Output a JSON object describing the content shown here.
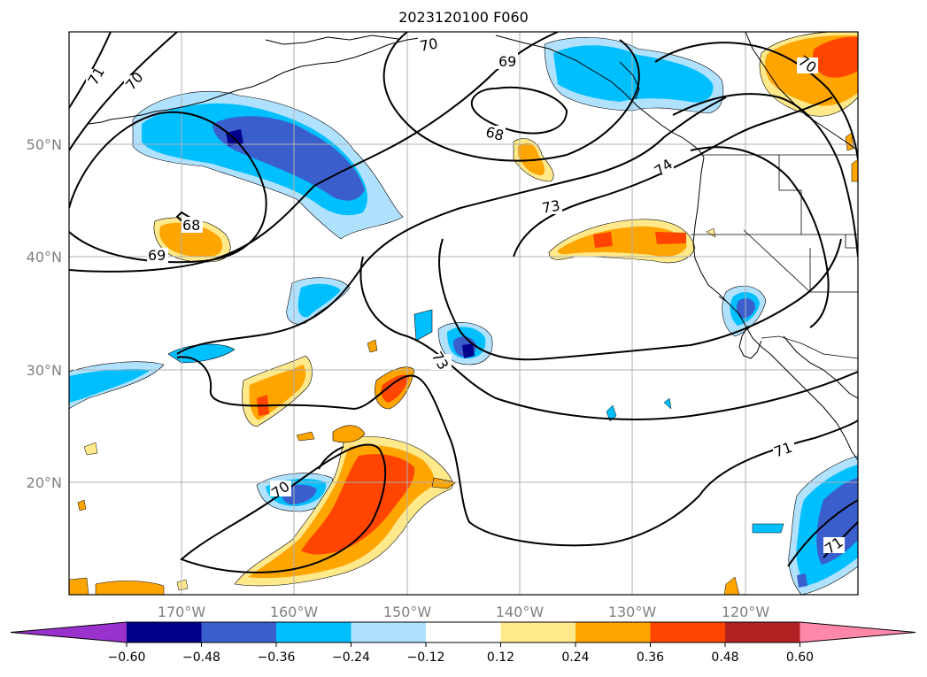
{
  "title": "2023120100 F060",
  "map": {
    "lon_ticks": [
      "170°W",
      "160°W",
      "150°W",
      "140°W",
      "130°W",
      "120°W"
    ],
    "lat_ticks": [
      "50°N",
      "40°N",
      "30°N",
      "20°N"
    ],
    "contour_labels": [
      "71",
      "70",
      "70",
      "69",
      "68",
      "68",
      "69",
      "73",
      "74",
      "70",
      "73",
      "70",
      "71",
      "71"
    ]
  },
  "colorbar": {
    "ticks": [
      "−0.60",
      "−0.48",
      "−0.36",
      "−0.24",
      "−0.12",
      "0.12",
      "0.24",
      "0.36",
      "0.48",
      "0.60"
    ],
    "colors": [
      "#9932cc",
      "#00008b",
      "#3a5fcd",
      "#00bfff",
      "#b0e2ff",
      "#ffffff",
      "#ffe98a",
      "#ffa500",
      "#ff4500",
      "#b22222",
      "#ff88aa"
    ]
  }
}
